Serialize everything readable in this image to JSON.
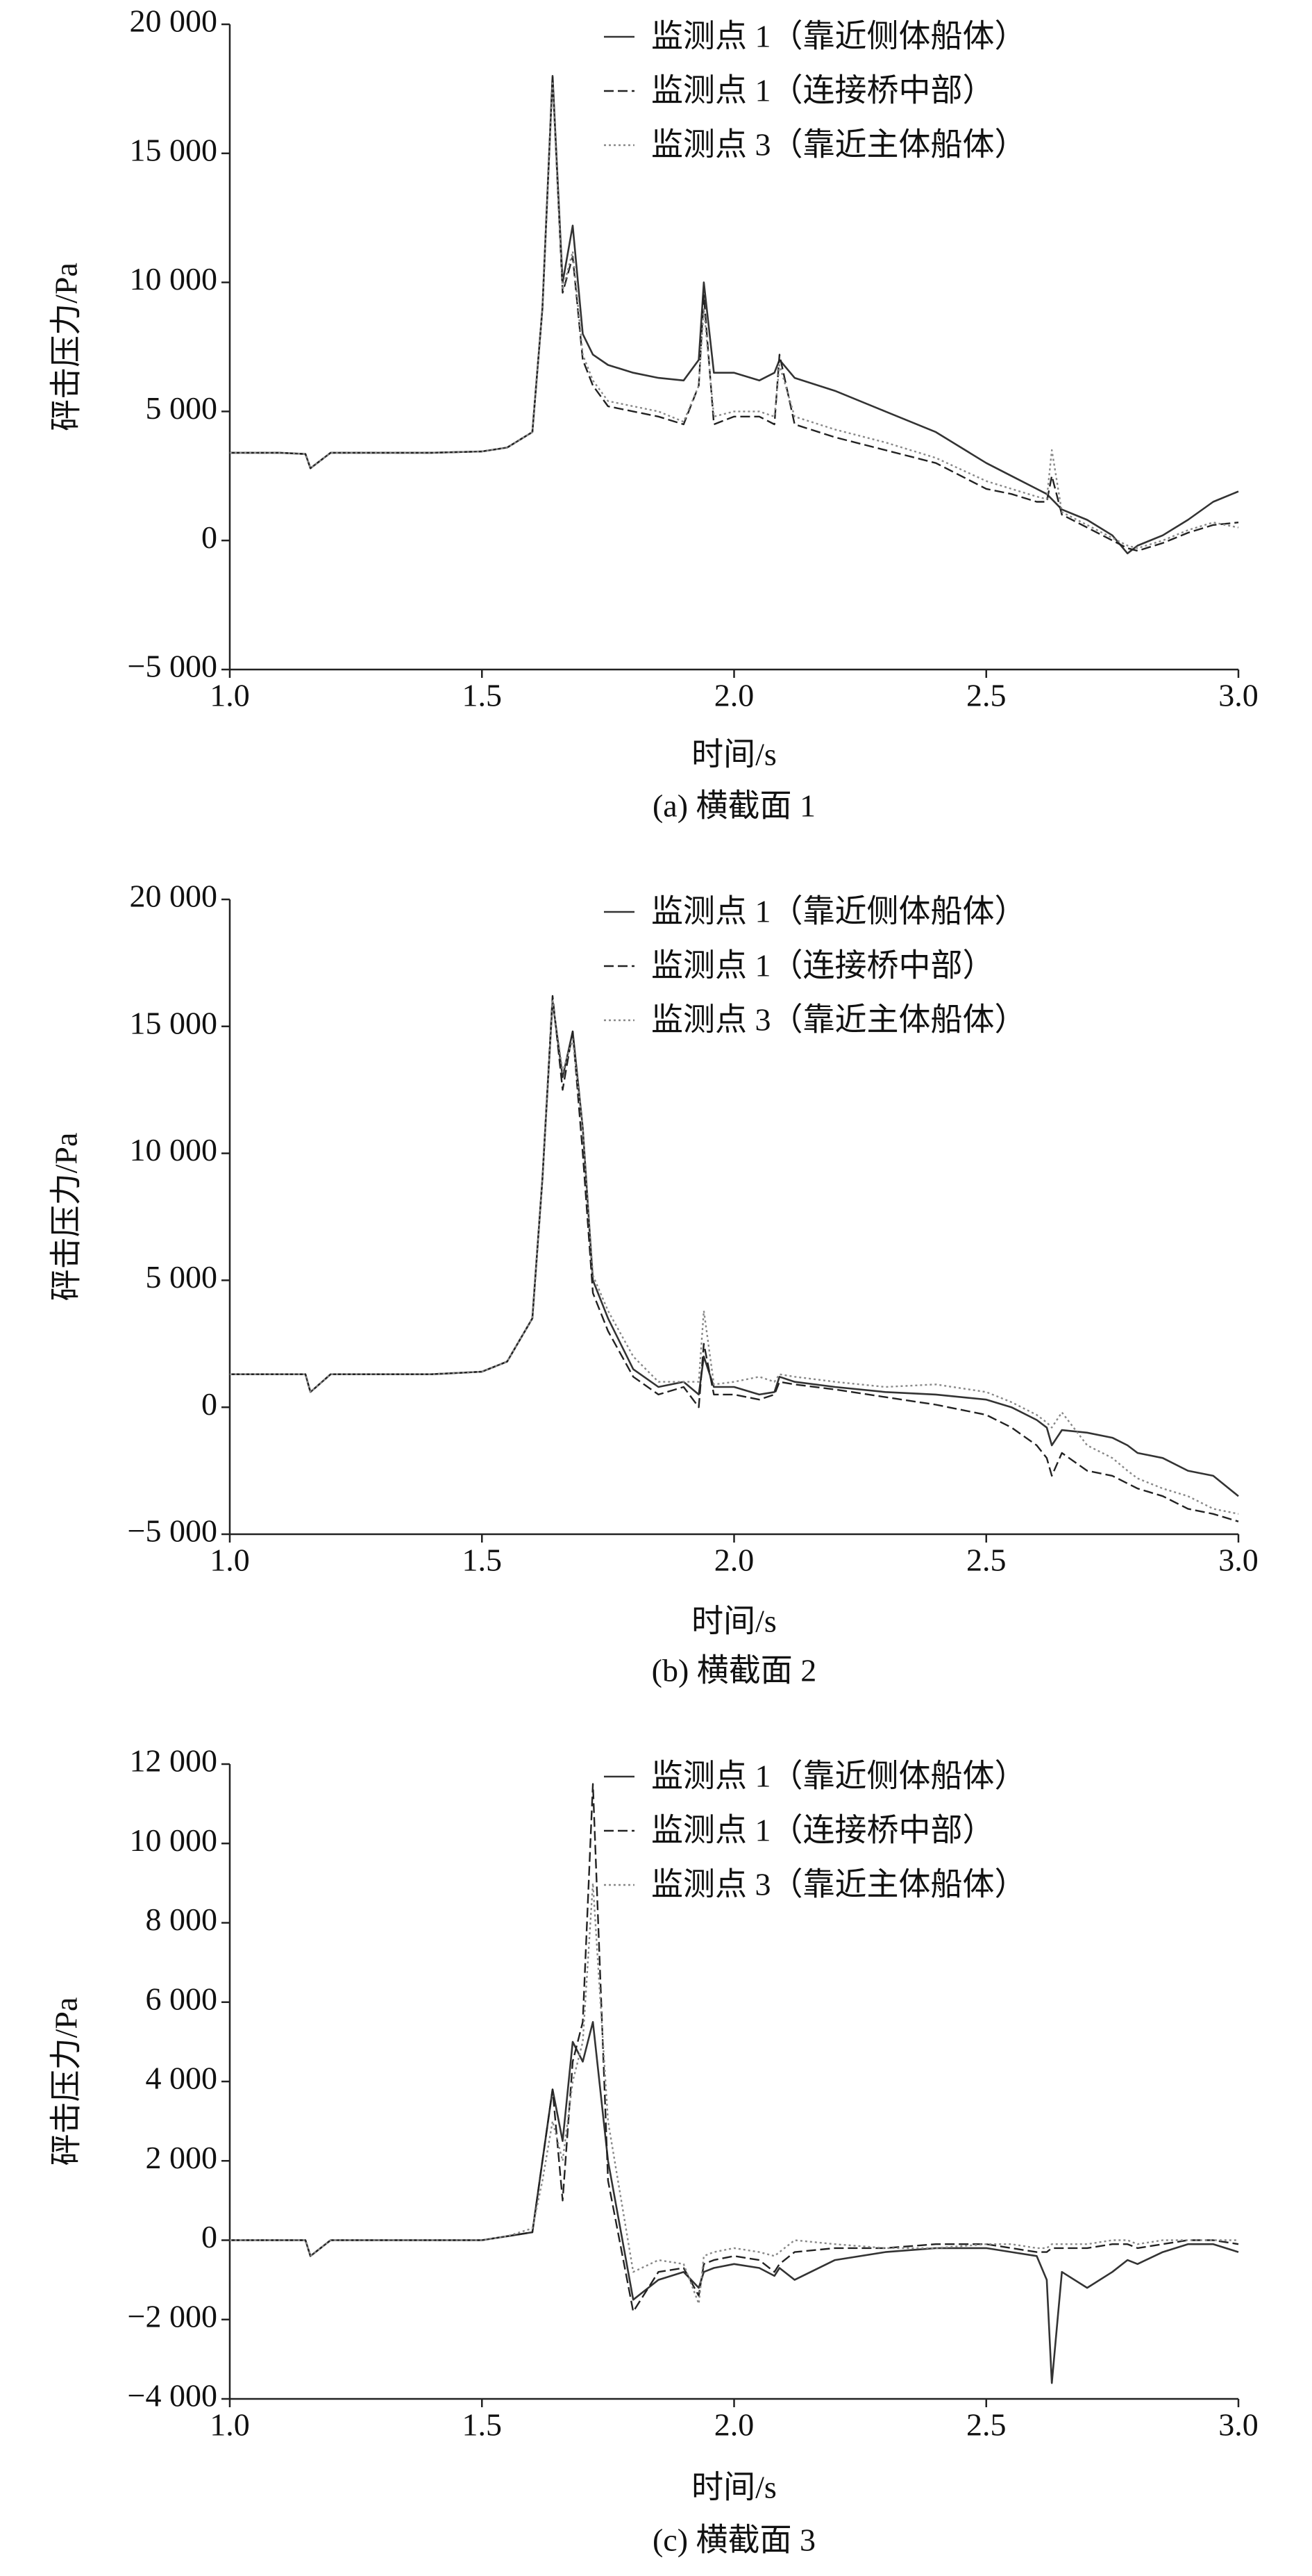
{
  "chart_data": [
    {
      "type": "line",
      "subtitle": "(a) 横截面 1",
      "x_label": "时间/s",
      "y_label": "砰击压力/Pa",
      "grid": false,
      "legend": "upper right",
      "xlim": [
        1,
        3
      ],
      "xticks": [
        {
          "value": 1,
          "label": "1.0"
        },
        1.5,
        {
          "value": 2,
          "label": "2.0"
        },
        2.5,
        {
          "value": 3,
          "label": "3.0"
        }
      ],
      "ylim": [
        -5000,
        20000
      ],
      "yticks": [
        {
          "value": -5000,
          "label": "−5 000"
        },
        0,
        {
          "value": 5000,
          "label": "5 000"
        },
        {
          "value": 10000,
          "label": "10 000"
        },
        {
          "value": 15000,
          "label": "15 000"
        },
        {
          "value": 20000,
          "label": "20 000"
        }
      ],
      "x": [
        1.0,
        1.1,
        1.15,
        1.16,
        1.2,
        1.3,
        1.4,
        1.5,
        1.55,
        1.6,
        1.62,
        1.64,
        1.66,
        1.68,
        1.7,
        1.72,
        1.75,
        1.8,
        1.85,
        1.9,
        1.93,
        1.94,
        1.96,
        2.0,
        2.05,
        2.08,
        2.09,
        2.12,
        2.2,
        2.3,
        2.4,
        2.5,
        2.55,
        2.6,
        2.62,
        2.63,
        2.65,
        2.7,
        2.75,
        2.78,
        2.8,
        2.85,
        2.9,
        2.95,
        3.0
      ],
      "series": [
        {
          "name": "监测点 1（靠近侧体船体）",
          "color": "#333333",
          "style": "solid",
          "values": [
            3400,
            3400,
            3350,
            2800,
            3400,
            3400,
            3400,
            3450,
            3600,
            4200,
            9000,
            18000,
            10000,
            12200,
            8000,
            7200,
            6800,
            6500,
            6300,
            6200,
            7000,
            10000,
            6500,
            6500,
            6200,
            6500,
            7000,
            6300,
            5800,
            5000,
            4200,
            3000,
            2500,
            2000,
            1800,
            1600,
            1200,
            800,
            200,
            -500,
            -200,
            200,
            800,
            1500,
            1900
          ]
        },
        {
          "name": "监测点 1（连接桥中部）",
          "color": "#222222",
          "style": "dashed",
          "values": [
            3400,
            3400,
            3350,
            2800,
            3400,
            3400,
            3400,
            3450,
            3600,
            4200,
            9000,
            18000,
            9600,
            11000,
            7000,
            6000,
            5200,
            5000,
            4800,
            4500,
            6000,
            9500,
            4500,
            4800,
            4800,
            4500,
            7200,
            4500,
            4000,
            3500,
            3000,
            2000,
            1800,
            1500,
            1500,
            2500,
            1000,
            500,
            0,
            -300,
            -400,
            -100,
            300,
            600,
            700
          ]
        },
        {
          "name": "监测点 3（靠近主体船体）",
          "color": "#888888",
          "style": "dotted",
          "values": [
            3400,
            3400,
            3350,
            2800,
            3400,
            3400,
            3400,
            3450,
            3600,
            4200,
            9000,
            17800,
            9700,
            11200,
            7200,
            6200,
            5400,
            5200,
            5000,
            4600,
            6000,
            9000,
            4800,
            5000,
            5000,
            4800,
            6800,
            4800,
            4300,
            3800,
            3200,
            2300,
            2000,
            1700,
            1600,
            3500,
            1100,
            600,
            100,
            -200,
            -300,
            0,
            400,
            700,
            500
          ]
        }
      ]
    },
    {
      "type": "line",
      "subtitle": "(b) 横截面 2",
      "x_label": "时间/s",
      "y_label": "砰击压力/Pa",
      "grid": false,
      "legend": "upper right",
      "xlim": [
        1,
        3
      ],
      "xticks": [
        {
          "value": 1,
          "label": "1.0"
        },
        1.5,
        {
          "value": 2,
          "label": "2.0"
        },
        2.5,
        {
          "value": 3,
          "label": "3.0"
        }
      ],
      "ylim": [
        -5000,
        20000
      ],
      "yticks": [
        {
          "value": -5000,
          "label": "−5 000"
        },
        0,
        {
          "value": 5000,
          "label": "5 000"
        },
        {
          "value": 10000,
          "label": "10 000"
        },
        {
          "value": 15000,
          "label": "15 000"
        },
        {
          "value": 20000,
          "label": "20 000"
        }
      ],
      "x": [
        1.0,
        1.1,
        1.15,
        1.16,
        1.2,
        1.3,
        1.4,
        1.5,
        1.55,
        1.6,
        1.62,
        1.64,
        1.66,
        1.68,
        1.7,
        1.72,
        1.75,
        1.8,
        1.85,
        1.9,
        1.93,
        1.94,
        1.96,
        2.0,
        2.05,
        2.08,
        2.09,
        2.12,
        2.2,
        2.3,
        2.4,
        2.5,
        2.55,
        2.6,
        2.62,
        2.63,
        2.65,
        2.7,
        2.75,
        2.78,
        2.8,
        2.85,
        2.9,
        2.95,
        3.0
      ],
      "series": [
        {
          "name": "监测点 1（靠近侧体船体）",
          "color": "#333333",
          "style": "solid",
          "values": [
            1300,
            1300,
            1300,
            600,
            1300,
            1300,
            1300,
            1400,
            1800,
            3500,
            9000,
            16000,
            13000,
            14800,
            11000,
            5000,
            3500,
            1500,
            800,
            1000,
            500,
            2000,
            800,
            800,
            500,
            600,
            1200,
            1000,
            800,
            600,
            500,
            300,
            0,
            -500,
            -800,
            -1500,
            -900,
            -1000,
            -1200,
            -1500,
            -1800,
            -2000,
            -2500,
            -2700,
            -3500
          ]
        },
        {
          "name": "监测点 1（连接桥中部）",
          "color": "#222222",
          "style": "dashed",
          "values": [
            1300,
            1300,
            1300,
            600,
            1300,
            1300,
            1300,
            1400,
            1800,
            3500,
            9000,
            16200,
            12500,
            14800,
            10000,
            4500,
            3000,
            1200,
            500,
            800,
            0,
            2500,
            500,
            500,
            300,
            500,
            1000,
            900,
            700,
            400,
            100,
            -300,
            -800,
            -1500,
            -2000,
            -2700,
            -1800,
            -2500,
            -2700,
            -3000,
            -3200,
            -3500,
            -4000,
            -4200,
            -4500
          ]
        },
        {
          "name": "监测点 3（靠近主体船体）",
          "color": "#888888",
          "style": "dotted",
          "values": [
            1300,
            1300,
            1300,
            600,
            1300,
            1300,
            1300,
            1400,
            1800,
            3500,
            9000,
            16000,
            13200,
            14500,
            11000,
            5200,
            3800,
            2000,
            1000,
            1000,
            1000,
            3800,
            900,
            1000,
            1200,
            1000,
            1300,
            1200,
            1000,
            800,
            900,
            600,
            200,
            -300,
            -600,
            -800,
            -200,
            -1500,
            -2000,
            -2500,
            -2800,
            -3200,
            -3500,
            -4000,
            -4200
          ]
        }
      ]
    },
    {
      "type": "line",
      "subtitle": "(c) 横截面 3",
      "x_label": "时间/s",
      "y_label": "砰击压力/Pa",
      "grid": false,
      "legend": "upper right",
      "xlim": [
        1,
        3
      ],
      "xticks": [
        {
          "value": 1,
          "label": "1.0"
        },
        1.5,
        {
          "value": 2,
          "label": "2.0"
        },
        2.5,
        {
          "value": 3,
          "label": "3.0"
        }
      ],
      "ylim": [
        -4000,
        12000
      ],
      "yticks": [
        {
          "value": -4000,
          "label": "−4 000"
        },
        {
          "value": -2000,
          "label": "−2 000"
        },
        0,
        {
          "value": 2000,
          "label": "2 000"
        },
        {
          "value": 4000,
          "label": "4 000"
        },
        {
          "value": 6000,
          "label": "6 000"
        },
        {
          "value": 8000,
          "label": "8 000"
        },
        {
          "value": 10000,
          "label": "10 000"
        },
        {
          "value": 12000,
          "label": "12 000"
        }
      ],
      "x": [
        1.0,
        1.1,
        1.15,
        1.16,
        1.2,
        1.3,
        1.4,
        1.5,
        1.55,
        1.6,
        1.62,
        1.64,
        1.66,
        1.68,
        1.7,
        1.72,
        1.75,
        1.8,
        1.85,
        1.9,
        1.93,
        1.94,
        1.96,
        2.0,
        2.05,
        2.08,
        2.09,
        2.12,
        2.2,
        2.3,
        2.4,
        2.5,
        2.55,
        2.6,
        2.62,
        2.63,
        2.65,
        2.7,
        2.75,
        2.78,
        2.8,
        2.85,
        2.9,
        2.95,
        3.0
      ],
      "series": [
        {
          "name": "监测点 1（靠近侧体船体）",
          "color": "#333333",
          "style": "solid",
          "values": [
            0,
            0,
            0,
            -400,
            0,
            0,
            0,
            0,
            100,
            200,
            2000,
            3800,
            2500,
            5000,
            4500,
            5500,
            2000,
            -1500,
            -1000,
            -800,
            -1200,
            -800,
            -700,
            -600,
            -700,
            -900,
            -700,
            -1000,
            -500,
            -300,
            -200,
            -200,
            -300,
            -400,
            -1000,
            -3600,
            -800,
            -1200,
            -800,
            -500,
            -600,
            -300,
            -100,
            -100,
            -300
          ]
        },
        {
          "name": "监测点 1（连接桥中部）",
          "color": "#222222",
          "style": "dashed",
          "values": [
            0,
            0,
            0,
            -400,
            0,
            0,
            0,
            0,
            100,
            200,
            2000,
            3800,
            1000,
            4500,
            5500,
            11500,
            1500,
            -1800,
            -800,
            -700,
            -1400,
            -600,
            -500,
            -400,
            -500,
            -800,
            -600,
            -300,
            -200,
            -200,
            -100,
            -100,
            -200,
            -300,
            -300,
            -200,
            -200,
            -200,
            -100,
            -100,
            -200,
            -100,
            0,
            0,
            -100
          ]
        },
        {
          "name": "监测点 3（靠近主体船体）",
          "color": "#888888",
          "style": "dotted",
          "values": [
            0,
            0,
            0,
            -400,
            0,
            0,
            0,
            0,
            100,
            300,
            1500,
            3000,
            2000,
            4000,
            5000,
            9000,
            3000,
            -800,
            -500,
            -600,
            -1600,
            -400,
            -300,
            -200,
            -300,
            -400,
            -300,
            0,
            -100,
            -200,
            -200,
            -100,
            -100,
            -200,
            -200,
            -100,
            -100,
            -100,
            0,
            0,
            -100,
            0,
            0,
            0,
            0
          ]
        }
      ]
    }
  ]
}
